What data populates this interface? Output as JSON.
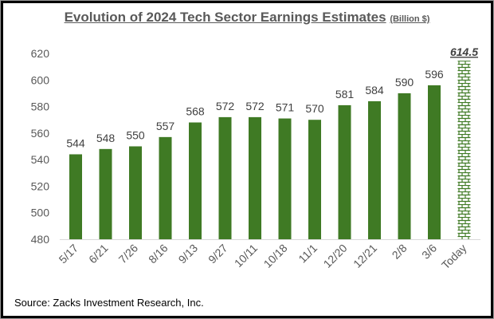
{
  "chart_data": {
    "type": "bar",
    "title": "Evolution of 2024 Tech Sector Earnings Estimates",
    "title_unit": "(Billion $)",
    "categories": [
      "5/17",
      "6/21",
      "7/26",
      "8/16",
      "9/13",
      "9/27",
      "10/11",
      "10/18",
      "11/1",
      "12/20",
      "12/21",
      "2/8",
      "3/6",
      "Today"
    ],
    "values": [
      544,
      548,
      550,
      557,
      568,
      572,
      572,
      571,
      570,
      581,
      584,
      590,
      596,
      614.5
    ],
    "data_labels": [
      "544",
      "548",
      "550",
      "557",
      "568",
      "572",
      "572",
      "571",
      "570",
      "581",
      "584",
      "590",
      "596",
      "614.5"
    ],
    "ylim": [
      480,
      620
    ],
    "yticks": [
      480,
      500,
      520,
      540,
      560,
      580,
      600,
      620
    ],
    "grid": false,
    "bar_color": "#3f7a24",
    "highlight_pattern": "brick",
    "xlabel": "",
    "ylabel": ""
  },
  "source": "Source: Zacks Investment Research, Inc."
}
